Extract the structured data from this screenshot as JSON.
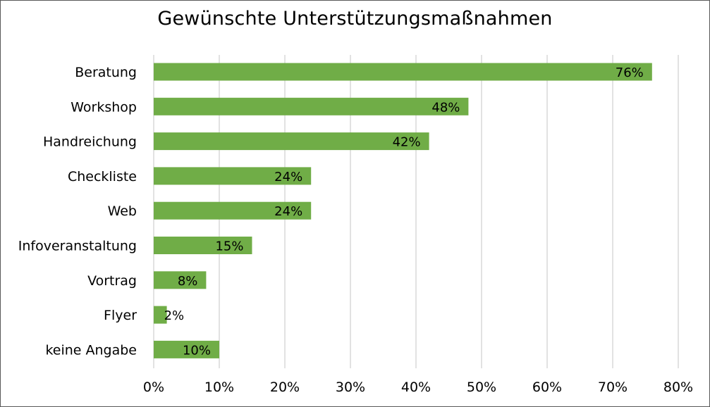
{
  "chart_data": {
    "type": "bar",
    "orientation": "horizontal",
    "title": "Gewünschte Unterstützungsmaßnahmen",
    "xlabel": "",
    "ylabel": "",
    "categories": [
      "Beratung",
      "Workshop",
      "Handreichung",
      "Checkliste",
      "Web",
      "Infoveranstaltung",
      "Vortrag",
      "Flyer",
      "keine Angabe"
    ],
    "values": [
      76,
      48,
      42,
      24,
      24,
      15,
      8,
      2,
      10
    ],
    "data_labels": [
      "76%",
      "48%",
      "42%",
      "24%",
      "24%",
      "15%",
      "8%",
      "2%",
      "10%"
    ],
    "xlim": [
      0,
      80
    ],
    "x_ticks": [
      0,
      10,
      20,
      30,
      40,
      50,
      60,
      70,
      80
    ],
    "x_tick_labels": [
      "0%",
      "10%",
      "20%",
      "30%",
      "40%",
      "50%",
      "60%",
      "70%",
      "80%"
    ],
    "grid": "vertical",
    "legend": "none",
    "colors": {
      "bar": "#70AD47",
      "grid": "#D9D9D9",
      "border": "#595959"
    }
  }
}
